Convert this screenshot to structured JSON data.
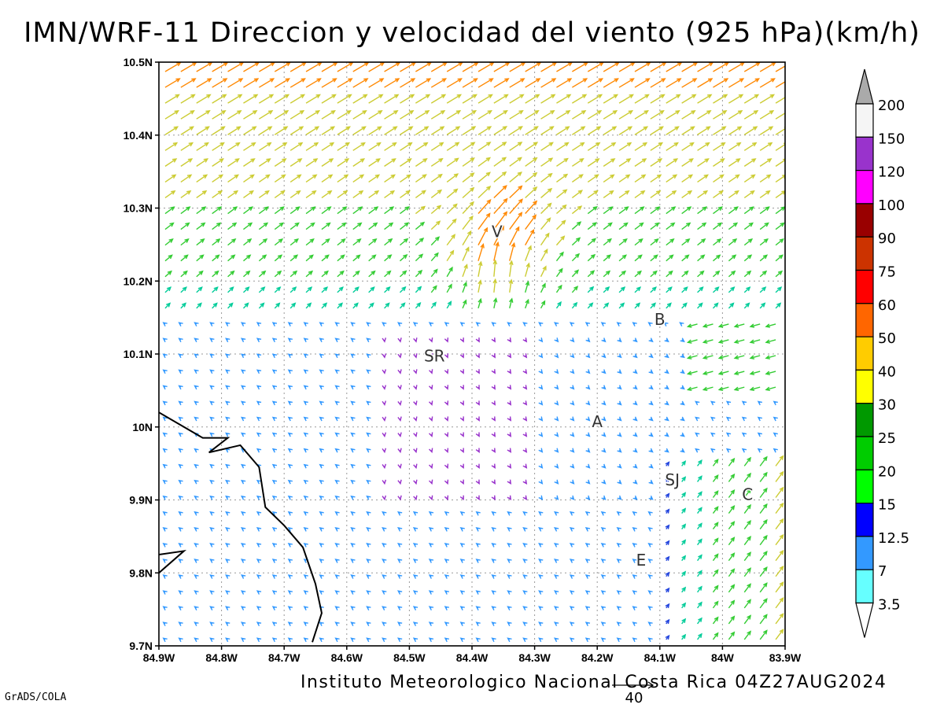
{
  "title": "IMN/WRF-11 Direccion y velocidad del viento (925 hPa)(km/h)",
  "credit": "Instituto Meteorologico Nacional Costa Rica 04Z27AUG2024",
  "software": "GrADS/COLA",
  "map": {
    "lon_range": [
      -84.9,
      -83.9
    ],
    "lat_range": [
      9.7,
      10.5
    ],
    "lat_ticks": [
      {
        "value": 10.5,
        "label": "10.5N"
      },
      {
        "value": 10.4,
        "label": "10.4N"
      },
      {
        "value": 10.3,
        "label": "10.3N"
      },
      {
        "value": 10.2,
        "label": "10.2N"
      },
      {
        "value": 10.1,
        "label": "10.1N"
      },
      {
        "value": 10.0,
        "label": "10N"
      },
      {
        "value": 9.9,
        "label": "9.9N"
      },
      {
        "value": 9.8,
        "label": "9.8N"
      },
      {
        "value": 9.7,
        "label": "9.7N"
      }
    ],
    "lon_ticks": [
      {
        "value": -84.9,
        "label": "84.9W"
      },
      {
        "value": -84.8,
        "label": "84.8W"
      },
      {
        "value": -84.7,
        "label": "84.7W"
      },
      {
        "value": -84.6,
        "label": "84.6W"
      },
      {
        "value": -84.5,
        "label": "84.5W"
      },
      {
        "value": -84.4,
        "label": "84.4W"
      },
      {
        "value": -84.3,
        "label": "84.3W"
      },
      {
        "value": -84.2,
        "label": "84.2W"
      },
      {
        "value": -84.1,
        "label": "84.1W"
      },
      {
        "value": -84.0,
        "label": "84W"
      },
      {
        "value": -83.9,
        "label": "83.9W"
      }
    ],
    "grid": true,
    "station_labels": [
      {
        "label": "V",
        "lon": -84.36,
        "lat": 10.26
      },
      {
        "label": "B",
        "lon": -84.1,
        "lat": 10.14
      },
      {
        "label": "SR",
        "lon": -84.46,
        "lat": 10.09
      },
      {
        "label": "A",
        "lon": -84.2,
        "lat": 10.0
      },
      {
        "label": "SJ",
        "lon": -84.08,
        "lat": 9.92
      },
      {
        "label": "C",
        "lon": -83.96,
        "lat": 9.9
      },
      {
        "label": "E",
        "lon": -84.13,
        "lat": 9.81
      }
    ],
    "coastline": [
      [
        -84.9,
        10.02
      ],
      [
        -84.83,
        9.985
      ],
      [
        -84.79,
        9.985
      ],
      [
        -84.82,
        9.965
      ],
      [
        -84.77,
        9.975
      ],
      [
        -84.74,
        9.945
      ],
      [
        -84.73,
        9.89
      ],
      [
        -84.7,
        9.865
      ],
      [
        -84.67,
        9.835
      ],
      [
        -84.65,
        9.785
      ],
      [
        -84.64,
        9.745
      ],
      [
        -84.655,
        9.705
      ]
    ],
    "coastline_secondary": [
      [
        -84.9,
        9.8
      ],
      [
        -84.86,
        9.83
      ],
      [
        -84.9,
        9.825
      ]
    ],
    "reference_vector": {
      "label": "40",
      "speed": 40
    }
  },
  "legend": {
    "labels": [
      "200",
      "150",
      "120",
      "100",
      "90",
      "75",
      "60",
      "50",
      "40",
      "30",
      "25",
      "20",
      "15",
      "12.5",
      "7",
      "3.5"
    ],
    "colors": [
      "#f5f5f5",
      "#9933cc",
      "#ff00ff",
      "#990000",
      "#cc3300",
      "#ff0000",
      "#ff6600",
      "#ffcc00",
      "#ffff00",
      "#009900",
      "#00cc00",
      "#00ff00",
      "#0000ff",
      "#3399ff",
      "#66ffff"
    ],
    "over_color": "#aaaaaa",
    "under_color": "#ffffff"
  },
  "colors": {
    "very_light": "#9933cc",
    "light": "#3399ff",
    "calm_blue": "#2244dd",
    "moderate": "#00cc99",
    "fresh": "#33cc33",
    "strong": "#cccc33",
    "very_strong": "#ff8800"
  }
}
